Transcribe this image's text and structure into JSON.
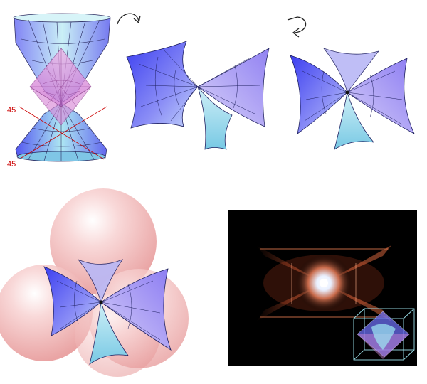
{
  "figure": {
    "angle_labels": [
      "45",
      "45"
    ],
    "panels": [
      {
        "id": "cone-cross-section",
        "caption": ""
      },
      {
        "id": "rotated-cone-side",
        "caption": ""
      },
      {
        "id": "rotated-cone-front",
        "caption": ""
      },
      {
        "id": "spheres-cluster",
        "caption": ""
      },
      {
        "id": "nebula-photo",
        "caption": ""
      }
    ],
    "colors": {
      "cone_fill": "#5a5cf0",
      "cone_light": "#a8e8f0",
      "octahedron": "#e59ad8",
      "sphere": "#f3b8b8",
      "photo_bg": "#000000",
      "nebula_glow": "#ff6a3a",
      "angle_mark": "#cc0000"
    },
    "icons": [
      "rotate-right-arrow-icon",
      "rotate-down-arrow-icon"
    ]
  }
}
